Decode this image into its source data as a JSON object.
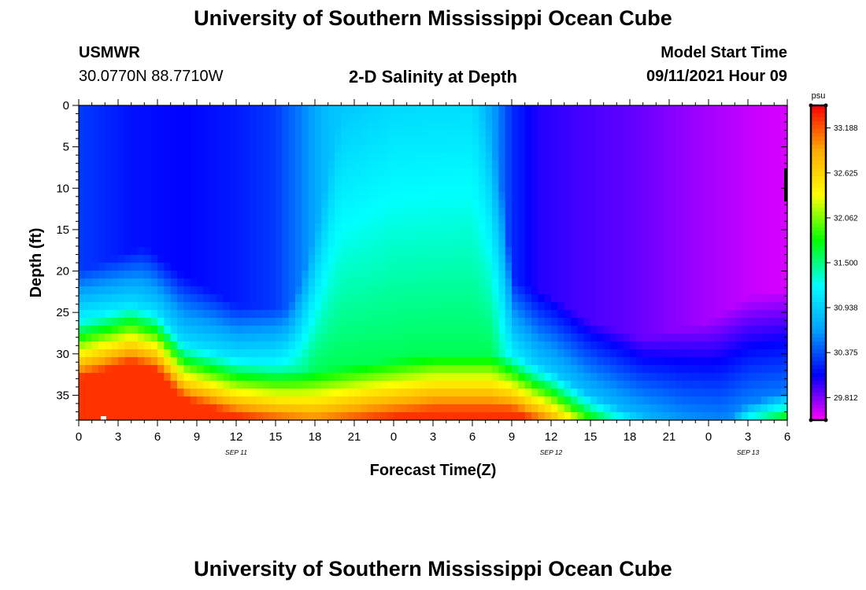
{
  "header": {
    "title": "University of Southern Mississippi Ocean Cube",
    "footer_title": "University of Southern Mississippi Ocean Cube",
    "station": "USMWR",
    "coords": "30.0770N  88.7710W",
    "plot_title": "2-D Salinity at Depth",
    "model_start_label": "Model Start Time",
    "model_start_value": "09/11/2021 Hour 09"
  },
  "chart_data": {
    "type": "heatmap",
    "title": "2-D Salinity at Depth",
    "xlabel": "Forecast Time(Z)",
    "ylabel": "Depth (ft)",
    "x_range_hours": [
      0,
      54
    ],
    "y_range_ft": [
      0,
      38
    ],
    "y_ticks": [
      0,
      5,
      10,
      15,
      20,
      25,
      30,
      35
    ],
    "x_tick_labels": [
      "0",
      "3",
      "6",
      "9",
      "12",
      "15",
      "18",
      "21",
      "0",
      "3",
      "6",
      "9",
      "12",
      "15",
      "18",
      "21",
      "0",
      "3",
      "6"
    ],
    "date_labels": [
      {
        "text": "SEP 11",
        "hour": 12
      },
      {
        "text": "SEP 12",
        "hour": 36
      },
      {
        "text": "SEP 13",
        "hour": 51
      }
    ],
    "colorbar": {
      "unit": "psu",
      "min": 29.53,
      "max": 33.47,
      "tick_values": [
        33.188,
        32.625,
        32.062,
        31.5,
        30.938,
        30.375,
        29.812
      ],
      "tick_labels": [
        "33.188",
        "32.625",
        "32.062",
        "31.500",
        "30.938",
        "30.375",
        "29.812"
      ]
    },
    "surface_salinity_psu": [
      {
        "hour": 0,
        "value": 30.3
      },
      {
        "hour": 4,
        "value": 30.15
      },
      {
        "hour": 8,
        "value": 30.1
      },
      {
        "hour": 12,
        "value": 30.18
      },
      {
        "hour": 15,
        "value": 30.3
      },
      {
        "hour": 17,
        "value": 30.55
      },
      {
        "hour": 19,
        "value": 30.85
      },
      {
        "hour": 24,
        "value": 31.0
      },
      {
        "hour": 30,
        "value": 31.02
      },
      {
        "hour": 31.5,
        "value": 30.7
      },
      {
        "hour": 33,
        "value": 30.25
      },
      {
        "hour": 35,
        "value": 30.02
      },
      {
        "hour": 38,
        "value": 29.95
      },
      {
        "hour": 42,
        "value": 29.88
      },
      {
        "hour": 47,
        "value": 29.75
      },
      {
        "hour": 51,
        "value": 29.66
      },
      {
        "hour": 54,
        "value": 29.62
      }
    ],
    "halocline_depth_ft": [
      {
        "hour": 0,
        "value": 26.0
      },
      {
        "hour": 4,
        "value": 24.0
      },
      {
        "hour": 6,
        "value": 25.0
      },
      {
        "hour": 8,
        "value": 28.5
      },
      {
        "hour": 12,
        "value": 30.5
      },
      {
        "hour": 18,
        "value": 32.0
      },
      {
        "hour": 22,
        "value": 31.0
      },
      {
        "hour": 27,
        "value": 30.0
      },
      {
        "hour": 33,
        "value": 30.0
      },
      {
        "hour": 36,
        "value": 32.0
      },
      {
        "hour": 39,
        "value": 35.0
      },
      {
        "hour": 42,
        "value": 37.0
      },
      {
        "hour": 46,
        "value": 38.5
      },
      {
        "hour": 49,
        "value": 38.5
      },
      {
        "hour": 51,
        "value": 36.0
      },
      {
        "hour": 54,
        "value": 34.5
      }
    ],
    "mixed_layer_depth_ft": [
      {
        "hour": 0,
        "value": 20.0
      },
      {
        "hour": 5,
        "value": 17.0
      },
      {
        "hour": 8,
        "value": 20.5
      },
      {
        "hour": 12,
        "value": 24.0
      },
      {
        "hour": 16,
        "value": 24.5
      },
      {
        "hour": 17,
        "value": 21.0
      },
      {
        "hour": 18.5,
        "value": 12.0
      },
      {
        "hour": 20,
        "value": 0.0
      },
      {
        "hour": 31,
        "value": 0.0
      },
      {
        "hour": 32.5,
        "value": 12.0
      },
      {
        "hour": 33,
        "value": 21.0
      },
      {
        "hour": 36,
        "value": 23.0
      },
      {
        "hour": 39,
        "value": 26.0
      },
      {
        "hour": 43,
        "value": 28.0
      },
      {
        "hour": 48,
        "value": 26.0
      },
      {
        "hour": 51,
        "value": 23.0
      },
      {
        "hour": 54,
        "value": 22.0
      }
    ],
    "bottom_salinity_psu": 33.3
  }
}
